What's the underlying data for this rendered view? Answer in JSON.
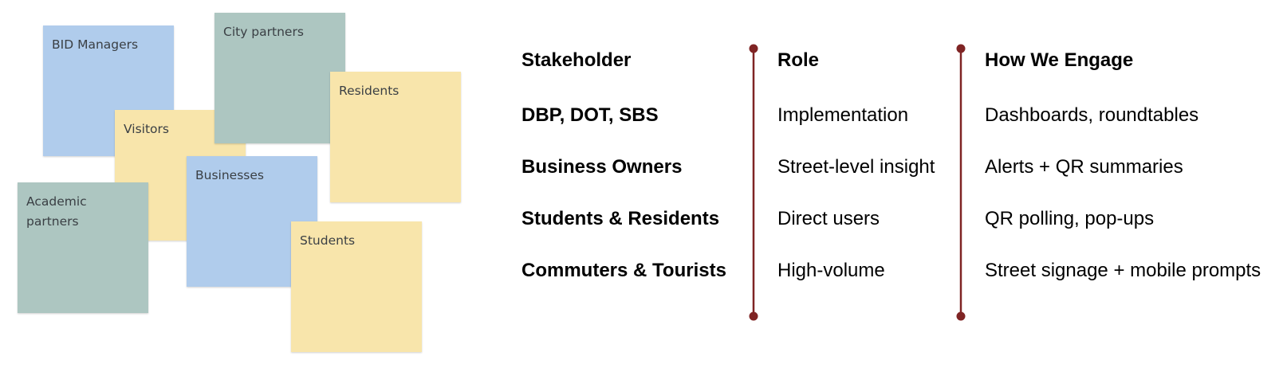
{
  "notes": {
    "bid_managers": "BID Managers",
    "city_partners": "City partners",
    "residents": "Residents",
    "visitors": "Visitors",
    "businesses": "Businesses",
    "academic_partners": "Academic partners",
    "students": "Students"
  },
  "colors": {
    "note_blue": "#b0ccec",
    "note_teal": "#adc6c1",
    "note_yellow": "#f8e5ab",
    "divider": "#7f2424"
  },
  "table": {
    "headers": {
      "stakeholder": "Stakeholder",
      "role": "Role",
      "engage": "How We Engage"
    },
    "rows": [
      {
        "stakeholder": "DBP, DOT, SBS",
        "role": "Implementation",
        "engage": "Dashboards, roundtables"
      },
      {
        "stakeholder": "Business Owners",
        "role": "Street-level insight",
        "engage": "Alerts + QR summaries"
      },
      {
        "stakeholder": "Students & Residents",
        "role": "Direct users",
        "engage": "QR polling, pop-ups"
      },
      {
        "stakeholder": "Commuters & Tourists",
        "role": "High-volume",
        "engage": "Street signage + mobile prompts"
      }
    ]
  }
}
